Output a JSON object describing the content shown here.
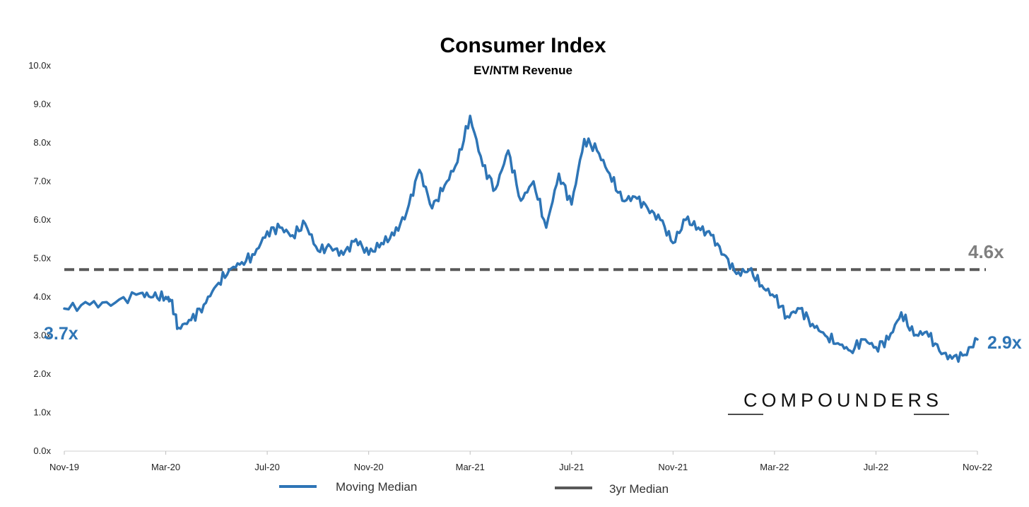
{
  "chart_data": {
    "type": "line",
    "title": "Consumer Index",
    "subtitle": "EV/NTM Revenue",
    "xlabel": "",
    "ylabel": "",
    "ylim": [
      0,
      10
    ],
    "y_ticks": [
      "0.0x",
      "1.0x",
      "2.0x",
      "3.0x",
      "4.0x",
      "5.0x",
      "6.0x",
      "7.0x",
      "8.0x",
      "9.0x",
      "10.0x"
    ],
    "x_ticks": [
      "Nov-19",
      "Mar-20",
      "Jul-20",
      "Nov-20",
      "Mar-21",
      "Jul-21",
      "Nov-21",
      "Mar-22",
      "Jul-22",
      "Nov-22"
    ],
    "series": [
      {
        "name": "Moving Median",
        "color": "#2e75b6",
        "x_month_index": [
          0,
          1,
          2,
          3,
          3.5,
          4,
          4.2,
          4.5,
          5,
          5.5,
          6,
          6.5,
          7,
          7.5,
          8,
          8.5,
          9,
          9.5,
          10,
          10.5,
          11,
          11.5,
          12,
          12.5,
          13,
          13.5,
          14,
          14.5,
          15,
          15.5,
          16,
          16.5,
          17,
          17.5,
          18,
          18.5,
          19,
          19.5,
          20,
          20.5,
          21,
          21.5,
          22,
          22.5,
          23,
          23.5,
          24,
          24.5,
          25,
          25.5,
          26,
          26.5,
          27,
          27.5,
          28,
          28.5,
          29,
          29.5,
          30,
          30.5,
          31,
          31.5,
          32,
          32.5,
          33,
          33.5,
          34,
          34.5,
          35,
          35.5,
          36
        ],
        "values": [
          3.7,
          3.8,
          3.85,
          4.1,
          4.0,
          4.0,
          3.9,
          3.2,
          3.4,
          3.8,
          4.3,
          4.7,
          4.9,
          5.1,
          5.7,
          5.8,
          5.6,
          5.9,
          5.2,
          5.3,
          5.1,
          5.5,
          5.1,
          5.4,
          5.6,
          6.2,
          7.3,
          6.3,
          6.9,
          7.5,
          8.7,
          7.4,
          6.8,
          7.8,
          6.5,
          7.0,
          5.8,
          7.2,
          6.4,
          8.1,
          7.8,
          7.2,
          6.5,
          6.6,
          6.3,
          6.0,
          5.4,
          6.0,
          5.8,
          5.6,
          5.1,
          4.6,
          4.7,
          4.3,
          4.0,
          3.5,
          3.7,
          3.3,
          3.0,
          2.8,
          2.6,
          2.9,
          2.7,
          2.9,
          3.6,
          3.0,
          3.1,
          2.6,
          2.4,
          2.5,
          2.9
        ]
      },
      {
        "name": "3yr Median",
        "color": "#595959",
        "style": "dashed",
        "values": [
          4.6
        ]
      }
    ],
    "annotations": {
      "start_label": "3.7x",
      "end_label": "2.9x",
      "median_label": "4.6x",
      "brand": "COMPOUNDERS"
    }
  }
}
